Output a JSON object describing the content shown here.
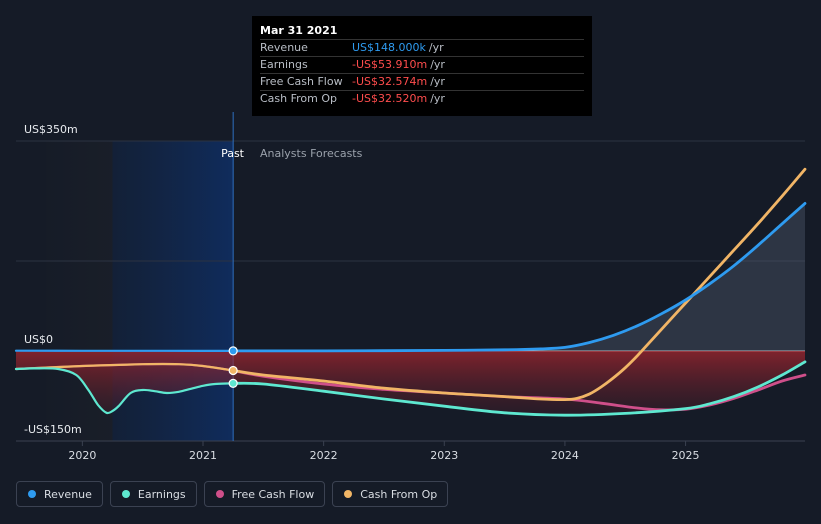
{
  "tooltip": {
    "date": "Mar 31 2021",
    "rows": [
      {
        "name": "Revenue",
        "value": "US$148.000k",
        "unit": "/yr",
        "negative": false
      },
      {
        "name": "Earnings",
        "value": "-US$53.910m",
        "unit": "/yr",
        "negative": true
      },
      {
        "name": "Free Cash Flow",
        "value": "-US$32.574m",
        "unit": "/yr",
        "negative": true
      },
      {
        "name": "Cash From Op",
        "value": "-US$32.520m",
        "unit": "/yr",
        "negative": true
      }
    ]
  },
  "colors": {
    "revenue": "#2e9bf0",
    "earnings": "#5ee8d0",
    "fcf": "#cf4f8a",
    "cfo": "#f1b566"
  },
  "chart_data": {
    "type": "line",
    "title": "",
    "xlabel": "",
    "ylabel": "",
    "xlim": [
      2019.45,
      2025.99
    ],
    "ylim": [
      -150,
      350
    ],
    "y_tick_labels": [
      "US$350m",
      "US$0",
      "-US$150m"
    ],
    "x_ticks": [
      2020,
      2021,
      2022,
      2023,
      2024,
      2025
    ],
    "x_tick_labels": [
      "2020",
      "2021",
      "2022",
      "2023",
      "2024",
      "2025"
    ],
    "past_label": "Past",
    "forecast_label": "Analysts Forecasts",
    "present_x": 2021.25,
    "highlight_start_x": 2020.25,
    "series": [
      {
        "name": "Revenue",
        "key": "revenue",
        "x": [
          2019.45,
          2020.0,
          2020.5,
          2021.0,
          2021.25,
          2022.0,
          2022.5,
          2023.0,
          2023.5,
          2023.8,
          2024.0,
          2024.2,
          2024.4,
          2024.6,
          2024.8,
          2025.0,
          2025.2,
          2025.4,
          2025.6,
          2025.8,
          2025.99
        ],
        "y": [
          0.5,
          0.4,
          0.3,
          0.2,
          0.148,
          0.2,
          0.5,
          1.0,
          2.0,
          3.5,
          6.0,
          14.0,
          26.0,
          42.0,
          62.0,
          85.0,
          112.0,
          142.0,
          176.0,
          212.0,
          246.0
        ]
      },
      {
        "name": "Earnings",
        "key": "earnings",
        "x": [
          2019.45,
          2019.6,
          2019.8,
          2019.95,
          2020.05,
          2020.13,
          2020.2,
          2020.25,
          2020.3,
          2020.4,
          2020.5,
          2020.6,
          2020.7,
          2020.8,
          2020.9,
          2021.0,
          2021.1,
          2021.25,
          2021.5,
          2022.0,
          2022.5,
          2023.0,
          2023.5,
          2024.0,
          2024.5,
          2025.0,
          2025.2,
          2025.4,
          2025.6,
          2025.8,
          2025.99
        ],
        "y": [
          -30,
          -29,
          -30,
          -40,
          -65,
          -90,
          -103,
          -100,
          -92,
          -70,
          -65,
          -67,
          -70,
          -68,
          -63,
          -58,
          -55,
          -53.91,
          -55,
          -67,
          -80,
          -92,
          -103,
          -107,
          -104,
          -96,
          -88,
          -76,
          -60,
          -40,
          -18
        ]
      },
      {
        "name": "Free Cash Flow",
        "key": "fcf",
        "x": [
          2019.45,
          2020.0,
          2020.5,
          2020.8,
          2021.0,
          2021.25,
          2021.5,
          2022.0,
          2022.5,
          2023.0,
          2023.5,
          2024.0,
          2024.3,
          2024.6,
          2024.8,
          2025.0,
          2025.2,
          2025.4,
          2025.6,
          2025.8,
          2025.99
        ],
        "y": [
          -30,
          -25,
          -22,
          -22,
          -25,
          -32.574,
          -42,
          -55,
          -64,
          -70,
          -76,
          -80,
          -87,
          -95,
          -98,
          -97,
          -90,
          -79,
          -65,
          -50,
          -40
        ]
      },
      {
        "name": "Cash From Op",
        "key": "cfo",
        "x": [
          2019.45,
          2020.0,
          2020.5,
          2020.8,
          2021.0,
          2021.25,
          2021.5,
          2022.0,
          2022.5,
          2023.0,
          2023.5,
          2023.8,
          2024.0,
          2024.1,
          2024.2,
          2024.3,
          2024.4,
          2024.5,
          2024.6,
          2024.7,
          2024.8,
          2025.0,
          2025.2,
          2025.4,
          2025.6,
          2025.8,
          2025.99
        ],
        "y": [
          -30,
          -25,
          -22,
          -22,
          -25,
          -32.52,
          -40,
          -50,
          -62,
          -70,
          -76,
          -80,
          -81,
          -79,
          -72,
          -60,
          -45,
          -28,
          -8,
          14,
          36,
          80,
          124,
          168,
          212,
          258,
          303
        ]
      }
    ]
  }
}
